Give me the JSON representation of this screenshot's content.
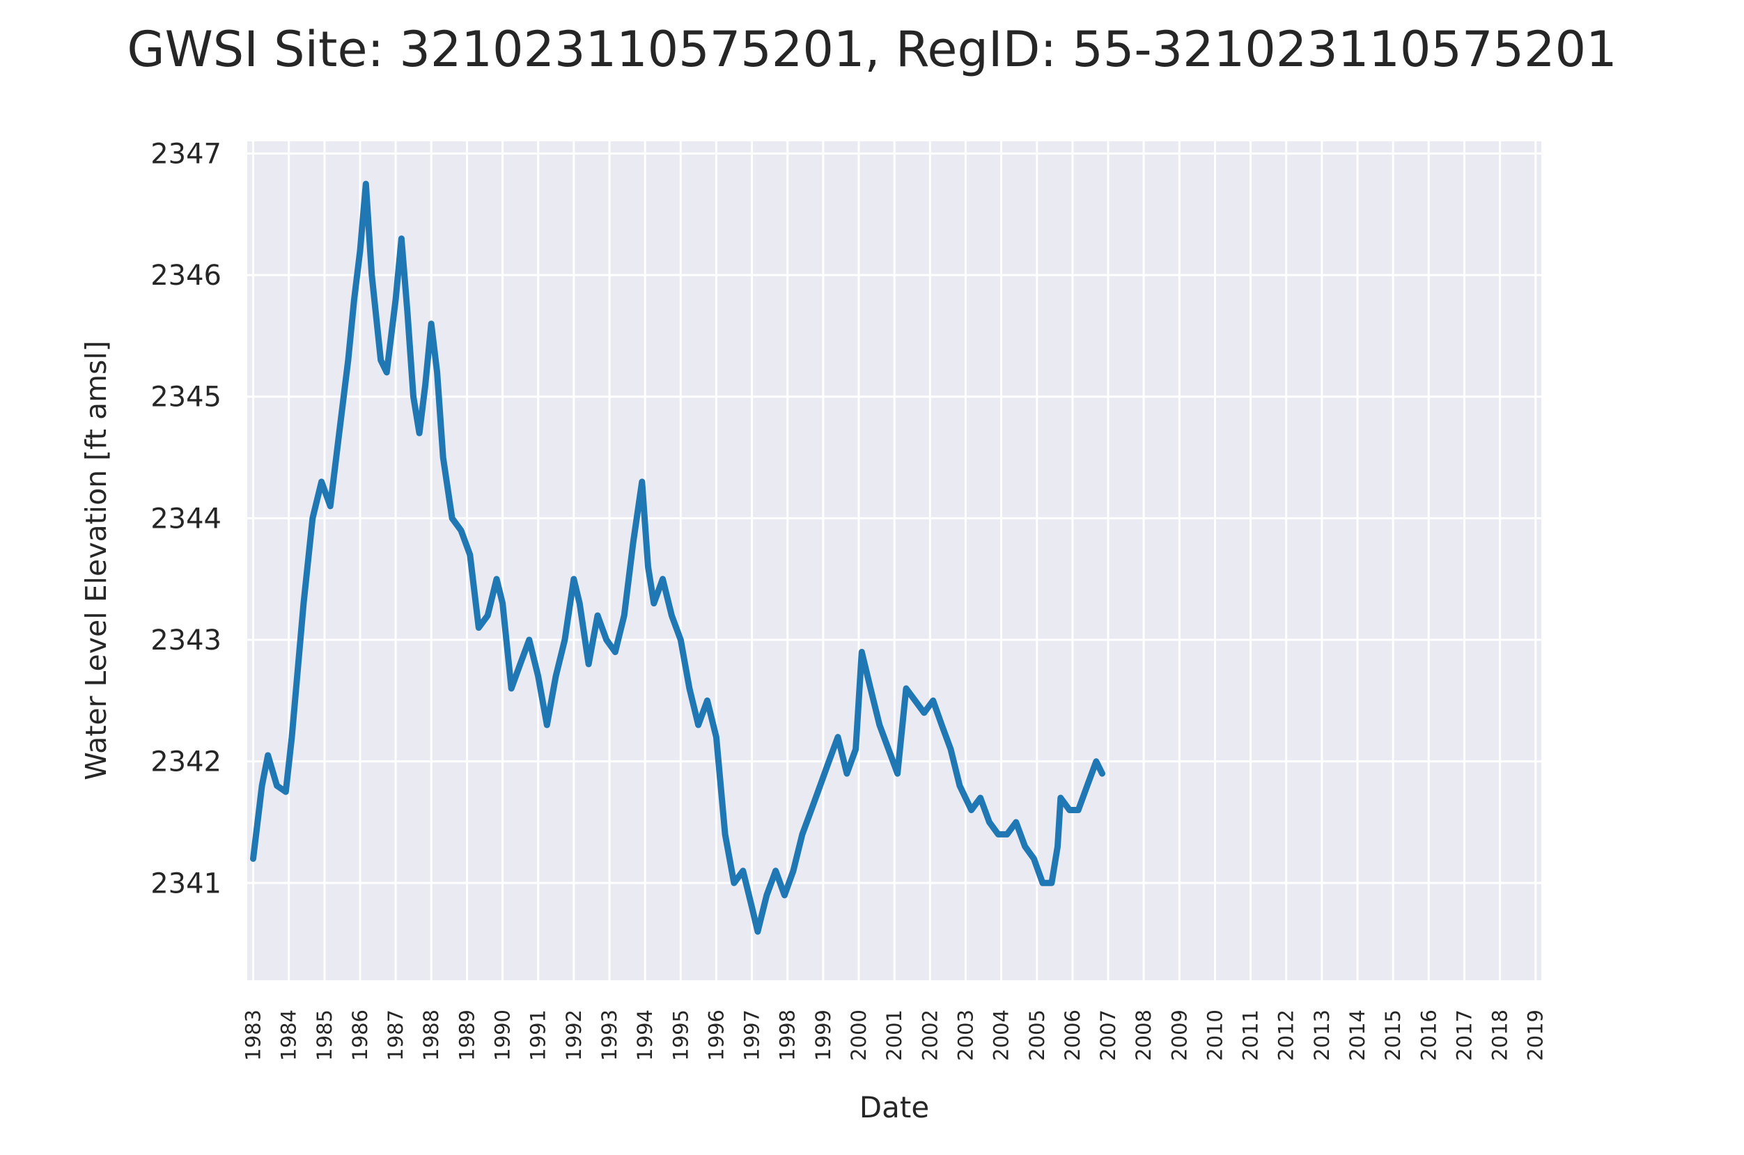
{
  "chart_data": {
    "type": "line",
    "title": "GWSI Site: 321023110575201, RegID: 55-321023110575201",
    "xlabel": "Date",
    "ylabel": "Water Level Elevation [ft amsl]",
    "xlim": [
      "1982-11-01",
      "2019-03-01"
    ],
    "ylim": [
      2340.2,
      2347.1
    ],
    "yticks": [
      "2341",
      "2342",
      "2343",
      "2344",
      "2345",
      "2346",
      "2347"
    ],
    "xticks": [
      "1983",
      "1984",
      "1985",
      "1986",
      "1987",
      "1988",
      "1989",
      "1990",
      "1991",
      "1992",
      "1993",
      "1994",
      "1995",
      "1996",
      "1997",
      "1998",
      "1999",
      "2000",
      "2001",
      "2002",
      "2003",
      "2004",
      "2005",
      "2006",
      "2007",
      "2008",
      "2009",
      "2010",
      "2011",
      "2012",
      "2013",
      "2014",
      "2015",
      "2016",
      "2017",
      "2018",
      "2019"
    ],
    "grid": true,
    "background": "#eaeaf2",
    "series": [
      {
        "color": "#1f77b4",
        "points": [
          [
            "1983-01-01",
            2341.2
          ],
          [
            "1983-04-01",
            2341.8
          ],
          [
            "1983-06-01",
            2342.05
          ],
          [
            "1983-09-01",
            2341.8
          ],
          [
            "1983-12-01",
            2341.75
          ],
          [
            "1984-02-01",
            2342.2
          ],
          [
            "1984-06-01",
            2343.3
          ],
          [
            "1984-09-01",
            2344.0
          ],
          [
            "1984-12-01",
            2344.3
          ],
          [
            "1985-03-01",
            2344.1
          ],
          [
            "1985-06-01",
            2344.7
          ],
          [
            "1985-09-01",
            2345.3
          ],
          [
            "1985-11-01",
            2345.8
          ],
          [
            "1986-01-01",
            2346.2
          ],
          [
            "1986-03-01",
            2346.75
          ],
          [
            "1986-05-01",
            2346.0
          ],
          [
            "1986-08-01",
            2345.3
          ],
          [
            "1986-10-01",
            2345.2
          ],
          [
            "1987-01-01",
            2345.8
          ],
          [
            "1987-03-01",
            2346.3
          ],
          [
            "1987-05-01",
            2345.7
          ],
          [
            "1987-07-01",
            2345.0
          ],
          [
            "1987-09-01",
            2344.7
          ],
          [
            "1987-11-01",
            2345.1
          ],
          [
            "1988-01-01",
            2345.6
          ],
          [
            "1988-03-01",
            2345.2
          ],
          [
            "1988-05-01",
            2344.5
          ],
          [
            "1988-08-01",
            2344.0
          ],
          [
            "1988-11-01",
            2343.9
          ],
          [
            "1989-02-01",
            2343.7
          ],
          [
            "1989-05-01",
            2343.1
          ],
          [
            "1989-08-01",
            2343.2
          ],
          [
            "1989-11-01",
            2343.5
          ],
          [
            "1990-01-01",
            2343.3
          ],
          [
            "1990-04-01",
            2342.6
          ],
          [
            "1990-07-01",
            2342.8
          ],
          [
            "1990-10-01",
            2343.0
          ],
          [
            "1991-01-01",
            2342.7
          ],
          [
            "1991-04-01",
            2342.3
          ],
          [
            "1991-07-01",
            2342.7
          ],
          [
            "1991-10-01",
            2343.0
          ],
          [
            "1992-01-01",
            2343.5
          ],
          [
            "1992-03-01",
            2343.3
          ],
          [
            "1992-06-01",
            2342.8
          ],
          [
            "1992-09-01",
            2343.2
          ],
          [
            "1992-12-01",
            2343.0
          ],
          [
            "1993-03-01",
            2342.9
          ],
          [
            "1993-06-01",
            2343.2
          ],
          [
            "1993-09-01",
            2343.8
          ],
          [
            "1993-12-01",
            2344.3
          ],
          [
            "1994-02-01",
            2343.6
          ],
          [
            "1994-04-01",
            2343.3
          ],
          [
            "1994-07-01",
            2343.5
          ],
          [
            "1994-10-01",
            2343.2
          ],
          [
            "1995-01-01",
            2343.0
          ],
          [
            "1995-04-01",
            2342.6
          ],
          [
            "1995-07-01",
            2342.3
          ],
          [
            "1995-10-01",
            2342.5
          ],
          [
            "1996-01-01",
            2342.2
          ],
          [
            "1996-04-01",
            2341.4
          ],
          [
            "1996-07-01",
            2341.0
          ],
          [
            "1996-10-01",
            2341.1
          ],
          [
            "1997-01-01",
            2340.8
          ],
          [
            "1997-03-01",
            2340.6
          ],
          [
            "1997-06-01",
            2340.9
          ],
          [
            "1997-09-01",
            2341.1
          ],
          [
            "1997-12-01",
            2340.9
          ],
          [
            "1998-03-01",
            2341.1
          ],
          [
            "1998-06-01",
            2341.4
          ],
          [
            "1998-09-01",
            2341.6
          ],
          [
            "1998-12-01",
            2341.8
          ],
          [
            "1999-03-01",
            2342.0
          ],
          [
            "1999-06-01",
            2342.2
          ],
          [
            "1999-09-01",
            2341.9
          ],
          [
            "1999-12-01",
            2342.1
          ],
          [
            "2000-02-01",
            2342.9
          ],
          [
            "2000-05-01",
            2342.6
          ],
          [
            "2000-08-01",
            2342.3
          ],
          [
            "2000-11-01",
            2342.1
          ],
          [
            "2001-02-01",
            2341.9
          ],
          [
            "2001-05-01",
            2342.6
          ],
          [
            "2001-08-01",
            2342.5
          ],
          [
            "2001-11-01",
            2342.4
          ],
          [
            "2002-02-01",
            2342.5
          ],
          [
            "2002-05-01",
            2342.3
          ],
          [
            "2002-08-01",
            2342.1
          ],
          [
            "2002-11-01",
            2341.8
          ],
          [
            "2003-03-01",
            2341.6
          ],
          [
            "2003-06-01",
            2341.7
          ],
          [
            "2003-09-01",
            2341.5
          ],
          [
            "2003-12-01",
            2341.4
          ],
          [
            "2004-03-01",
            2341.4
          ],
          [
            "2004-06-01",
            2341.5
          ],
          [
            "2004-09-01",
            2341.3
          ],
          [
            "2004-12-01",
            2341.2
          ],
          [
            "2005-03-01",
            2341.0
          ],
          [
            "2005-06-01",
            2341.0
          ],
          [
            "2005-08-01",
            2341.3
          ],
          [
            "2005-09-01",
            2341.7
          ],
          [
            "2005-12-01",
            2341.6
          ],
          [
            "2006-03-01",
            2341.6
          ],
          [
            "2006-06-01",
            2341.8
          ],
          [
            "2006-09-01",
            2342.0
          ],
          [
            "2006-11-01",
            2341.9
          ]
        ]
      }
    ]
  }
}
